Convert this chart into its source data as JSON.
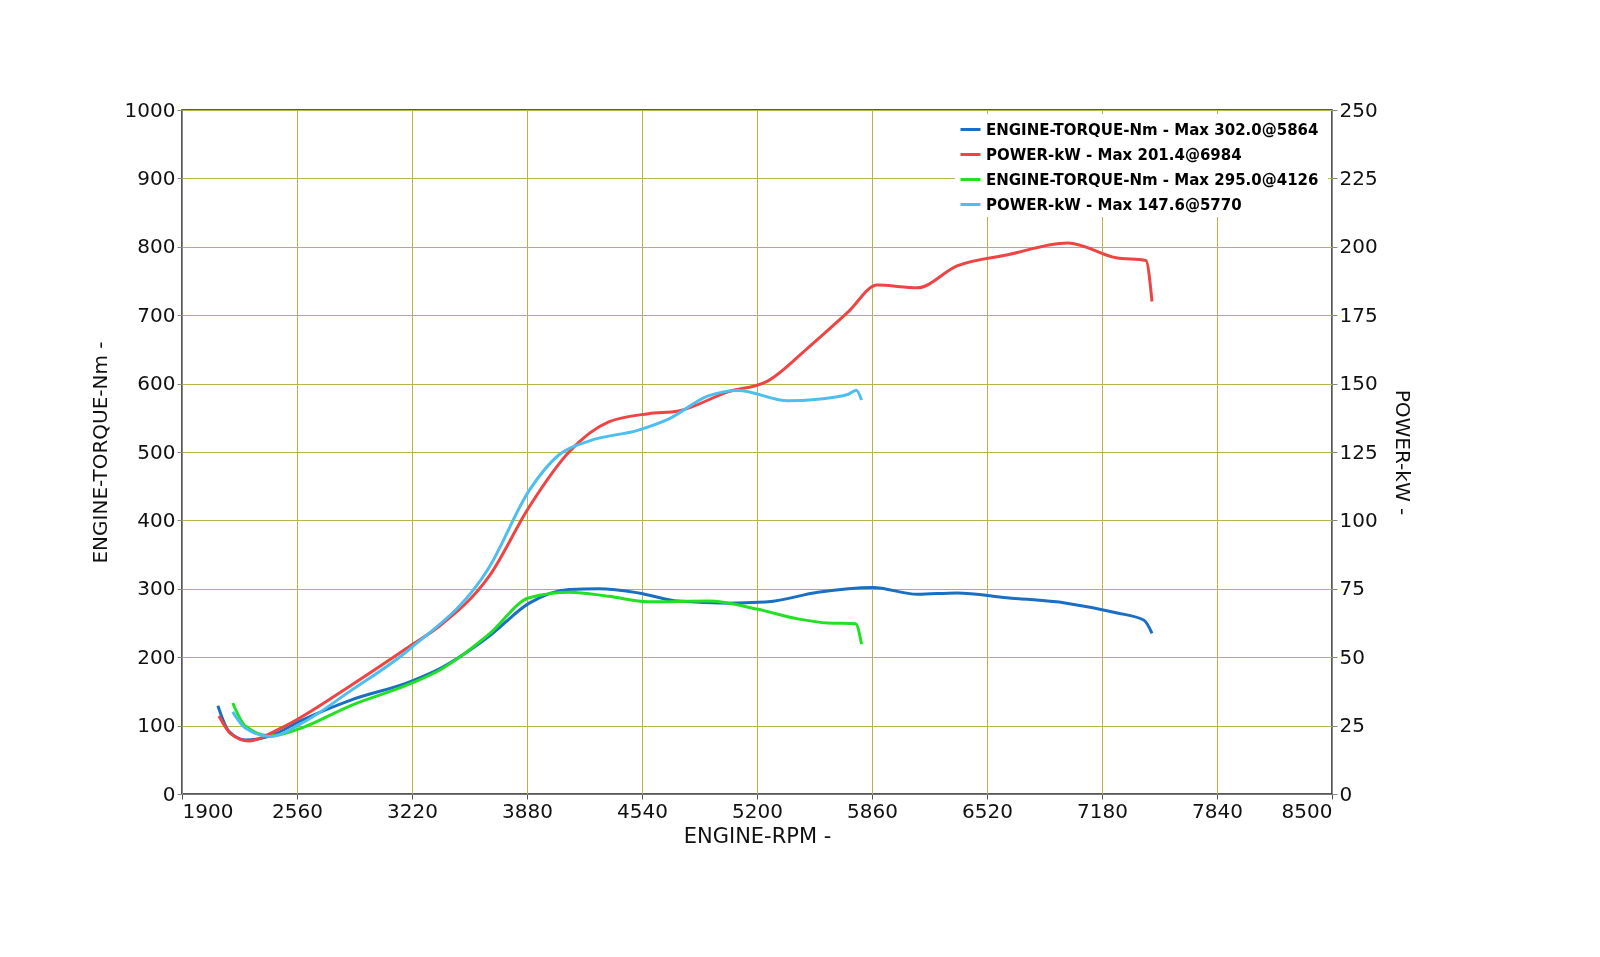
{
  "chart_data": {
    "type": "line",
    "xlabel": "ENGINE-RPM -",
    "ylabel": "ENGINE-TORQUE-Nm -",
    "y2label": "POWER-kW -",
    "xlim": [
      1900,
      8500
    ],
    "xticks": [
      1900,
      2560,
      3220,
      3880,
      4540,
      5200,
      5860,
      6520,
      7180,
      7840,
      8500
    ],
    "ylim": [
      0,
      1000
    ],
    "yticks": [
      0,
      100,
      200,
      300,
      400,
      500,
      600,
      700,
      800,
      900,
      1000
    ],
    "y2lim": [
      0,
      250
    ],
    "y2ticks": [
      0,
      25,
      50,
      75,
      100,
      125,
      150,
      175,
      200,
      225,
      250
    ],
    "grid": true,
    "legend": "top right",
    "marker": "none",
    "line_style": "solid",
    "series": [
      {
        "name": "ENGINE-TORQUE-Nm -  Max 302.0@5864",
        "color": "#1a6fc4",
        "x": [
          2106,
          2168,
          2265,
          2408,
          2580,
          2865,
          3207,
          3378,
          3664,
          3893,
          4121,
          4292,
          4520,
          4749,
          5034,
          5263,
          5549,
          5864,
          6120,
          6348,
          6633,
          6976,
          7261,
          7421,
          7467
        ],
        "values": [
          129,
          92,
          79,
          85,
          107,
          137,
          164,
          183,
          231,
          279,
          299,
          300,
          294,
          282,
          279,
          281,
          295,
          302,
          292,
          294,
          287,
          279,
          265,
          254,
          235
        ]
      },
      {
        "name": "POWER-kW -  Max 201.4@6984",
        "color": "#ef4444",
        "axis": "y2",
        "x": [
          2112,
          2180,
          2283,
          2465,
          2865,
          3207,
          3378,
          3664,
          3893,
          4121,
          4349,
          4577,
          4749,
          5034,
          5263,
          5491,
          5720,
          5891,
          6120,
          6348,
          6633,
          6984,
          7261,
          7432,
          7467
        ],
        "values": [
          28.5,
          22,
          19.4,
          24,
          39.5,
          54,
          61.4,
          79.7,
          105,
          125,
          136,
          139,
          140,
          147,
          151,
          163,
          176,
          186,
          185,
          193,
          197,
          201.4,
          196,
          195,
          180
        ]
      },
      {
        "name": "ENGINE-TORQUE-Nm -  Max 295.0@4126",
        "color": "#22e022",
        "x": [
          2191,
          2265,
          2408,
          2580,
          2865,
          3207,
          3378,
          3664,
          3893,
          4126,
          4349,
          4577,
          4920,
          5206,
          5434,
          5606,
          5766,
          5800
        ],
        "values": [
          133,
          99,
          85,
          96,
          129,
          161,
          181,
          234,
          287,
          295,
          289,
          281,
          282,
          270,
          256,
          250,
          249,
          219
        ]
      },
      {
        "name": "POWER-kW -  Max 147.6@5770",
        "color": "#4dbef0",
        "axis": "y2",
        "x": [
          2191,
          2265,
          2408,
          2580,
          2865,
          3207,
          3664,
          3893,
          4064,
          4235,
          4520,
          4692,
          4920,
          5092,
          5377,
          5549,
          5720,
          5770,
          5800
        ],
        "values": [
          30,
          24,
          21,
          25.6,
          37.6,
          53,
          83,
          111,
          124,
          129,
          133,
          137,
          145.5,
          147.5,
          143.7,
          144.3,
          146,
          147.6,
          144
        ]
      }
    ]
  }
}
